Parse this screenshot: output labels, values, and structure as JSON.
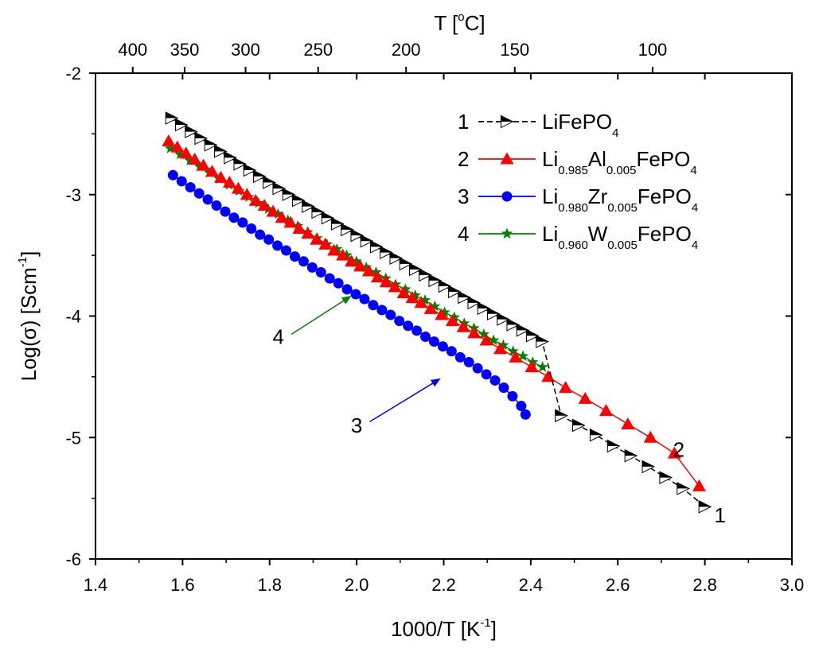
{
  "chart_data": {
    "type": "scatter",
    "xlabel": {
      "main": "1000/T [K",
      "sup": "-1",
      "end": "]"
    },
    "ylabel": {
      "main": "Log(σ) [Scm",
      "sup": "-1",
      "end": "]"
    },
    "top_label": {
      "main": "T [",
      "sup": "o",
      "end": "C]"
    },
    "xlim": [
      1.4,
      3.0
    ],
    "ylim": [
      -6,
      -2
    ],
    "x_ticks": [
      1.4,
      1.6,
      1.8,
      2.0,
      2.2,
      2.4,
      2.6,
      2.8,
      3.0
    ],
    "x_tick_labels": [
      "1.4",
      "1.6",
      "1.8",
      "2.0",
      "2.2",
      "2.4",
      "2.6",
      "2.8",
      "3.0"
    ],
    "y_ticks": [
      -6,
      -5,
      -4,
      -3,
      -2
    ],
    "y_tick_labels": [
      "-6",
      "-5",
      "-4",
      "-3",
      "-2"
    ],
    "top_ticks": [
      400,
      350,
      300,
      250,
      200,
      150,
      100
    ],
    "top_tick_labels": [
      "400",
      "350",
      "300",
      "250",
      "200",
      "150",
      "100"
    ],
    "legend_position": "top-right",
    "series": [
      {
        "id": "1",
        "name": "LiFePO4",
        "legend_parts": [
          {
            "t": "LiFePO",
            "s": false
          },
          {
            "t": "4",
            "s": true
          }
        ],
        "color": "#000000",
        "marker": "triangle-right",
        "line_dash": true,
        "x": [
          1.575,
          1.5974,
          1.6198,
          1.6422,
          1.6646,
          1.687,
          1.7094,
          1.7318,
          1.7542,
          1.7766,
          1.799,
          1.8214,
          1.8438,
          1.8662,
          1.8886,
          1.911,
          1.9334,
          1.9558,
          1.9782,
          2.0006,
          2.023,
          2.0454,
          2.0678,
          2.0902,
          2.1126,
          2.135,
          2.1574,
          2.1798,
          2.2022,
          2.2246,
          2.247,
          2.2694,
          2.2918,
          2.3142,
          2.3366,
          2.359,
          2.3814,
          2.4038,
          2.4262,
          2.47,
          2.51,
          2.55,
          2.59,
          2.63,
          2.67,
          2.71,
          2.75,
          2.8
        ],
        "y": [
          -2.37,
          -2.426,
          -2.482,
          -2.537,
          -2.591,
          -2.644,
          -2.696,
          -2.748,
          -2.799,
          -2.85,
          -2.9,
          -2.95,
          -2.999,
          -3.048,
          -3.097,
          -3.145,
          -3.193,
          -3.241,
          -3.289,
          -3.336,
          -3.383,
          -3.43,
          -3.477,
          -3.523,
          -3.57,
          -3.616,
          -3.662,
          -3.708,
          -3.754,
          -3.8,
          -3.846,
          -3.891,
          -3.937,
          -3.982,
          -4.027,
          -4.072,
          -4.117,
          -4.162,
          -4.21,
          -4.82,
          -4.9,
          -4.98,
          -5.07,
          -5.15,
          -5.24,
          -5.33,
          -5.42,
          -5.57
        ]
      },
      {
        "id": "2",
        "name": "Li0.985Al0.005FePO4",
        "legend_parts": [
          {
            "t": "Li",
            "s": false
          },
          {
            "t": "0.985",
            "s": true
          },
          {
            "t": "Al",
            "s": false
          },
          {
            "t": "0.005",
            "s": true
          },
          {
            "t": "FePO",
            "s": false
          },
          {
            "t": "4",
            "s": true
          }
        ],
        "color": "#ff0000",
        "marker": "triangle-up",
        "line_dash": false,
        "x": [
          1.568,
          1.588,
          1.608,
          1.628,
          1.648,
          1.668,
          1.688,
          1.708,
          1.728,
          1.748,
          1.768,
          1.788,
          1.808,
          1.828,
          1.848,
          1.868,
          1.888,
          1.908,
          1.928,
          1.948,
          1.968,
          1.988,
          2.008,
          2.028,
          2.048,
          2.068,
          2.088,
          2.108,
          2.128,
          2.148,
          2.17,
          2.195,
          2.22,
          2.245,
          2.27,
          2.298,
          2.33,
          2.365,
          2.402,
          2.44,
          2.48,
          2.525,
          2.573,
          2.623,
          2.675,
          2.73,
          2.787
        ],
        "y": [
          -2.56,
          -2.61,
          -2.66,
          -2.71,
          -2.76,
          -2.81,
          -2.86,
          -2.9,
          -2.95,
          -3.0,
          -3.05,
          -3.09,
          -3.14,
          -3.19,
          -3.23,
          -3.28,
          -3.32,
          -3.37,
          -3.41,
          -3.46,
          -3.5,
          -3.55,
          -3.59,
          -3.63,
          -3.68,
          -3.72,
          -3.76,
          -3.81,
          -3.85,
          -3.89,
          -3.94,
          -3.99,
          -4.04,
          -4.09,
          -4.14,
          -4.2,
          -4.27,
          -4.34,
          -4.42,
          -4.5,
          -4.59,
          -4.68,
          -4.78,
          -4.89,
          -5.0,
          -5.13,
          -5.4
        ]
      },
      {
        "id": "3",
        "name": "Li0.980Zr0.005FePO4",
        "legend_parts": [
          {
            "t": "Li",
            "s": false
          },
          {
            "t": "0.980",
            "s": true
          },
          {
            "t": "Zr",
            "s": false
          },
          {
            "t": "0.005",
            "s": true
          },
          {
            "t": "FePO",
            "s": false
          },
          {
            "t": "4",
            "s": true
          }
        ],
        "color": "#0000ff",
        "marker": "circle",
        "line_dash": false,
        "x": [
          1.578,
          1.598,
          1.618,
          1.638,
          1.658,
          1.678,
          1.698,
          1.718,
          1.738,
          1.758,
          1.778,
          1.798,
          1.818,
          1.838,
          1.858,
          1.878,
          1.898,
          1.918,
          1.938,
          1.958,
          1.978,
          1.998,
          2.018,
          2.038,
          2.058,
          2.078,
          2.098,
          2.118,
          2.138,
          2.158,
          2.178,
          2.198,
          2.218,
          2.238,
          2.258,
          2.278,
          2.298,
          2.318,
          2.338,
          2.358,
          2.378,
          2.388
        ],
        "y": [
          -2.84,
          -2.89,
          -2.94,
          -2.99,
          -3.04,
          -3.09,
          -3.14,
          -3.19,
          -3.23,
          -3.28,
          -3.33,
          -3.37,
          -3.42,
          -3.46,
          -3.51,
          -3.55,
          -3.6,
          -3.64,
          -3.69,
          -3.73,
          -3.78,
          -3.82,
          -3.86,
          -3.91,
          -3.95,
          -3.99,
          -4.04,
          -4.08,
          -4.12,
          -4.17,
          -4.21,
          -4.25,
          -4.29,
          -4.34,
          -4.38,
          -4.43,
          -4.48,
          -4.53,
          -4.59,
          -4.66,
          -4.74,
          -4.81
        ]
      },
      {
        "id": "4",
        "name": "Li0.960W0.005FePO4",
        "legend_parts": [
          {
            "t": "Li",
            "s": false
          },
          {
            "t": "0.960",
            "s": true
          },
          {
            "t": "W",
            "s": false
          },
          {
            "t": "0.005",
            "s": true
          },
          {
            "t": "FePO",
            "s": false
          },
          {
            "t": "4",
            "s": true
          }
        ],
        "color": "#008000",
        "marker": "star",
        "line_dash": false,
        "x": [
          1.572,
          1.5945,
          1.617,
          1.6395,
          1.662,
          1.6845,
          1.707,
          1.7295,
          1.752,
          1.7745,
          1.797,
          1.8195,
          1.842,
          1.8645,
          1.887,
          1.9095,
          1.932,
          1.9545,
          1.977,
          1.9995,
          2.022,
          2.0445,
          2.067,
          2.0895,
          2.112,
          2.1345,
          2.157,
          2.1795,
          2.202,
          2.2245,
          2.247,
          2.2695,
          2.292,
          2.3145,
          2.337,
          2.3595,
          2.382,
          2.4045,
          2.427
        ],
        "y": [
          -2.62,
          -2.67,
          -2.72,
          -2.77,
          -2.82,
          -2.87,
          -2.92,
          -2.97,
          -3.02,
          -3.07,
          -3.12,
          -3.16,
          -3.21,
          -3.26,
          -3.31,
          -3.36,
          -3.41,
          -3.45,
          -3.5,
          -3.55,
          -3.6,
          -3.64,
          -3.69,
          -3.74,
          -3.78,
          -3.83,
          -3.87,
          -3.92,
          -3.97,
          -4.01,
          -4.06,
          -4.1,
          -4.15,
          -4.2,
          -4.24,
          -4.29,
          -4.33,
          -4.38,
          -4.42
        ]
      }
    ],
    "annotations": [
      {
        "text": "1",
        "x": 2.835,
        "y": -5.64
      },
      {
        "text": "2",
        "x": 2.74,
        "y": -5.1
      },
      {
        "text": "3",
        "x": 2.0,
        "y": -4.9,
        "arrow_from": [
          2.03,
          -4.87
        ],
        "arrow_to": [
          2.19,
          -4.52
        ],
        "color": "#0000ff"
      },
      {
        "text": "4",
        "x": 1.82,
        "y": -4.17,
        "arrow_from": [
          1.85,
          -4.15
        ],
        "arrow_to": [
          1.985,
          -3.84
        ],
        "color": "#008000"
      }
    ]
  }
}
